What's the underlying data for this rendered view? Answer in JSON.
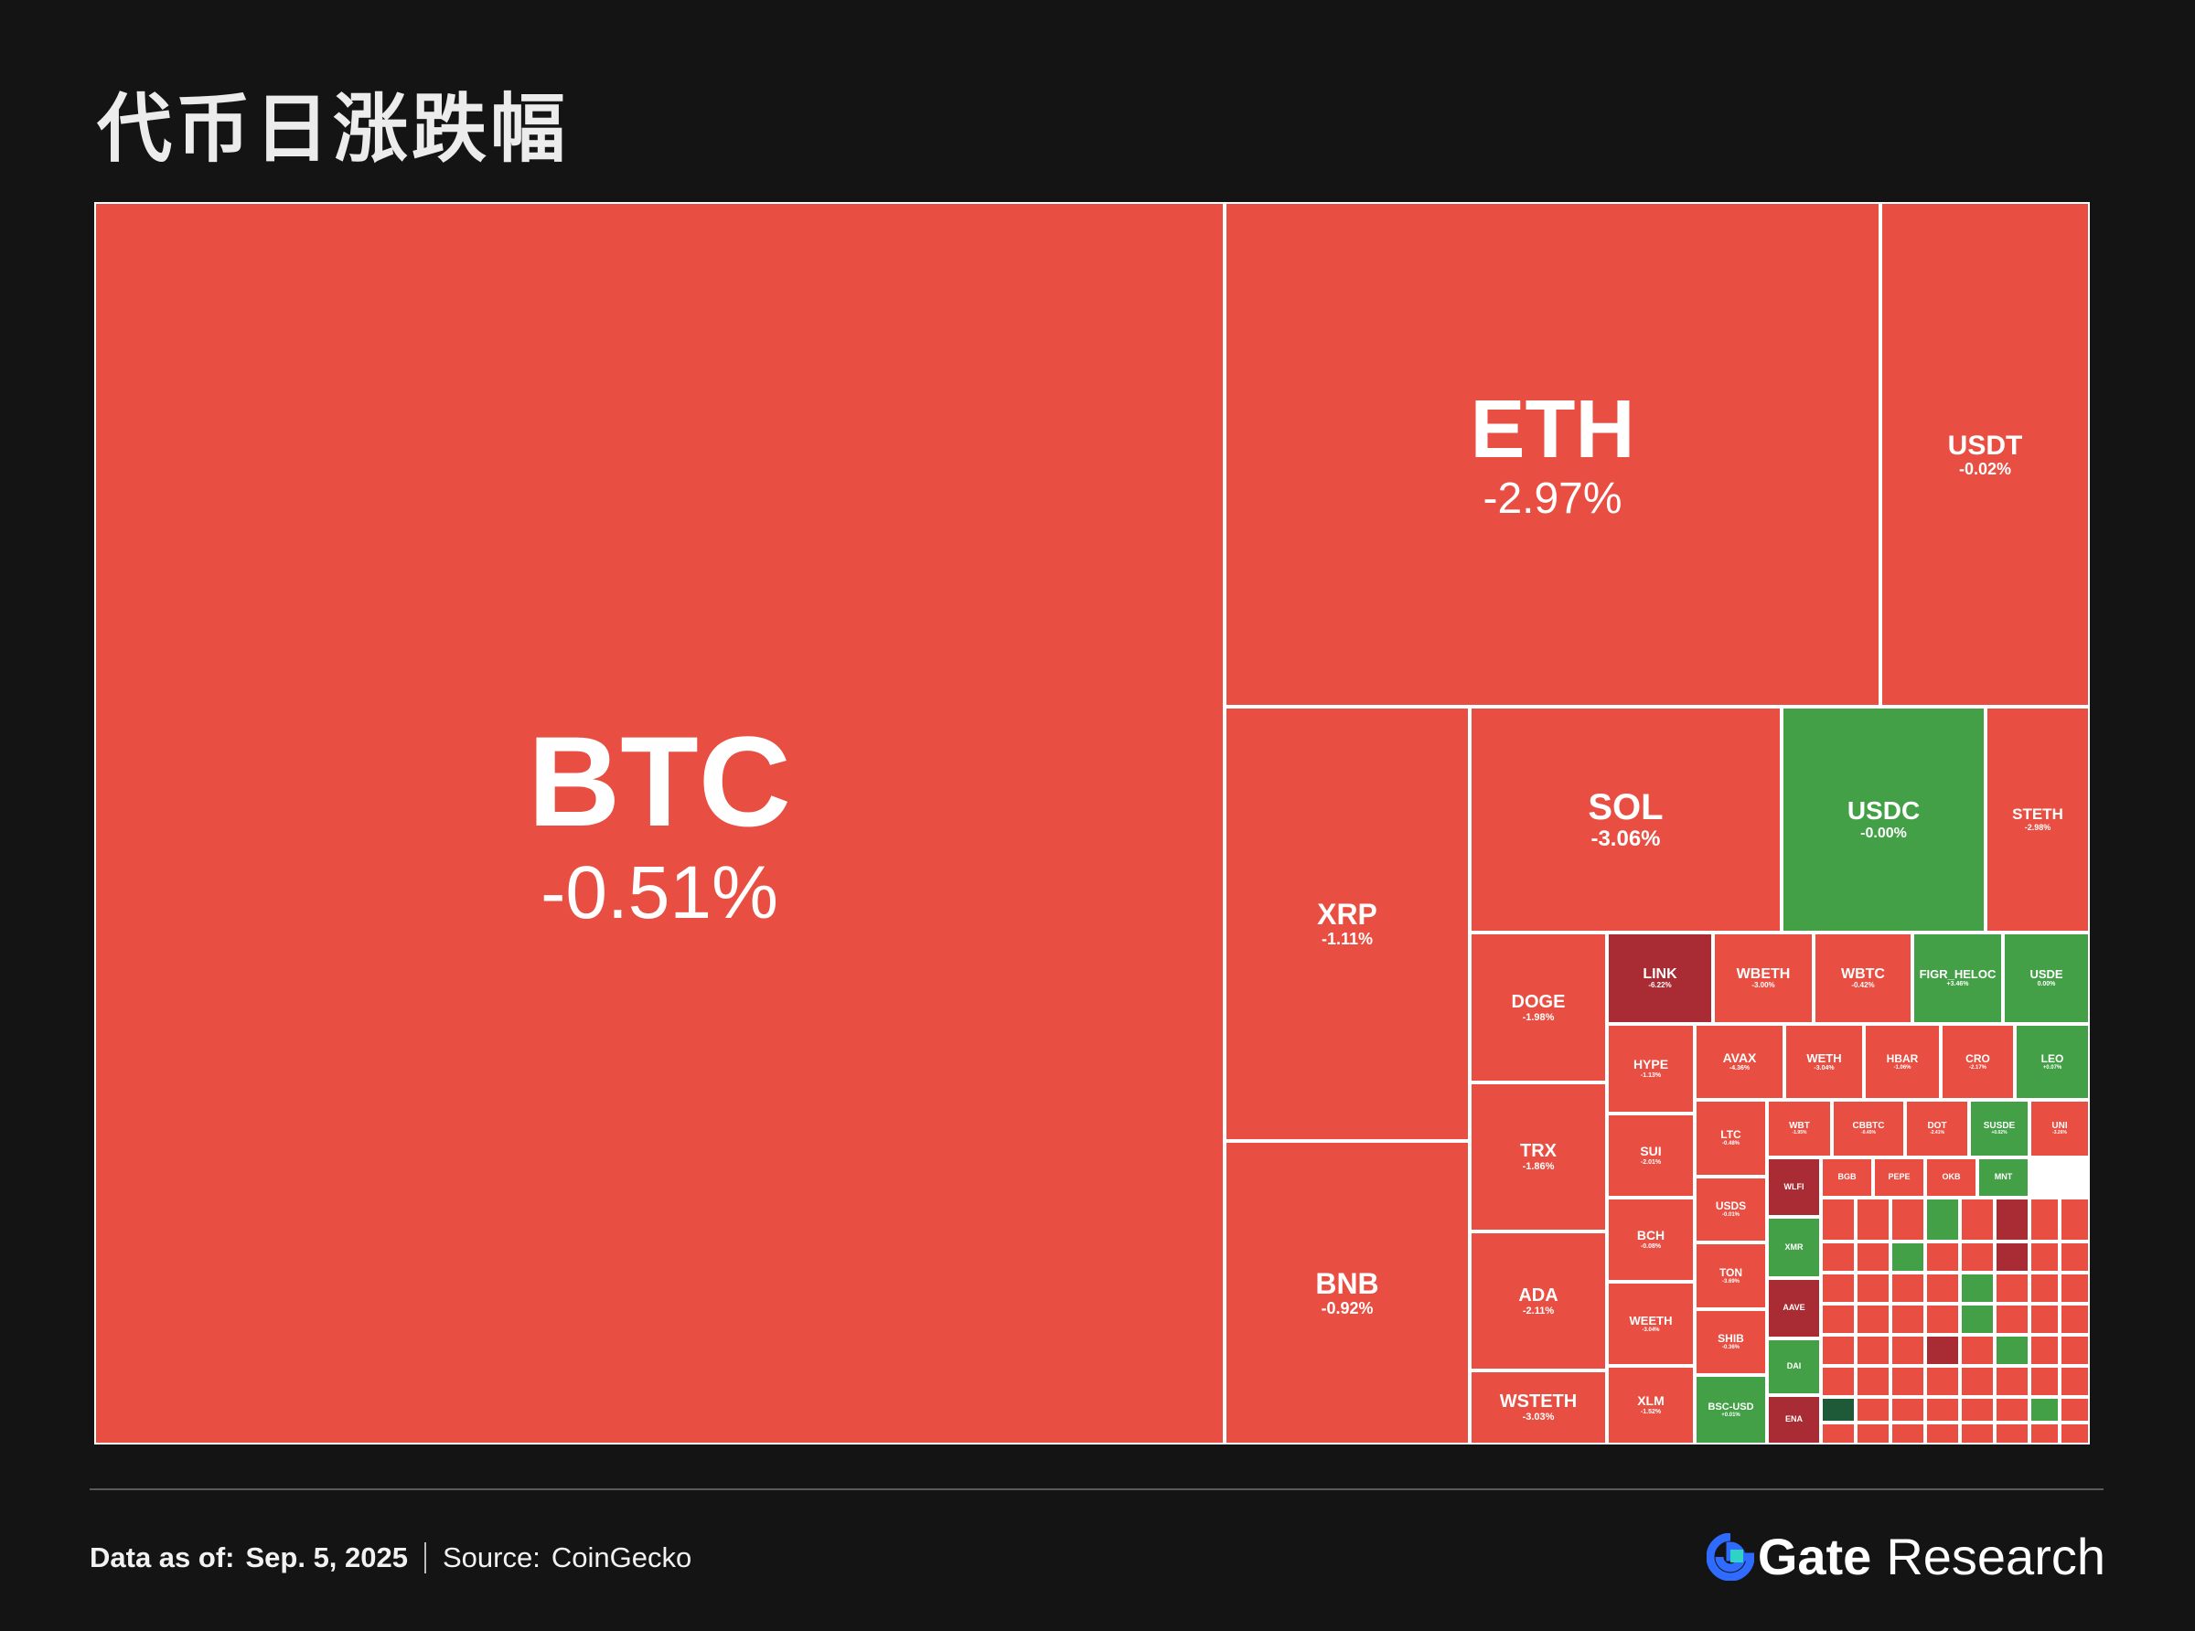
{
  "title": "代币日涨跌幅",
  "colors": {
    "negative": "#e84e41",
    "strong_negative": "#a92b33",
    "positive": "#43a047",
    "strong_positive": "#1e5a38",
    "neutral": "#e4513f"
  },
  "chart_data": {
    "type": "treemap",
    "metric": "daily price change (%)",
    "cells": [
      {
        "symbol": "BTC",
        "change": "-0.51%",
        "value": -0.51
      },
      {
        "symbol": "ETH",
        "change": "-2.97%",
        "value": -2.97
      },
      {
        "symbol": "USDT",
        "change": "-0.02%",
        "value": -0.02
      },
      {
        "symbol": "XRP",
        "change": "-1.11%",
        "value": -1.11
      },
      {
        "symbol": "BNB",
        "change": "-0.92%",
        "value": -0.92
      },
      {
        "symbol": "SOL",
        "change": "-3.06%",
        "value": -3.06
      },
      {
        "symbol": "USDC",
        "change": "-0.00%",
        "value": 0.0
      },
      {
        "symbol": "STETH",
        "change": "-2.98%",
        "value": -2.98
      },
      {
        "symbol": "DOGE",
        "change": "-1.98%",
        "value": -1.98
      },
      {
        "symbol": "TRX",
        "change": "-1.86%",
        "value": -1.86
      },
      {
        "symbol": "ADA",
        "change": "-2.11%",
        "value": -2.11
      },
      {
        "symbol": "WSTETH",
        "change": "-3.03%",
        "value": -3.03
      },
      {
        "symbol": "LINK",
        "change": "-6.22%",
        "value": -6.22
      },
      {
        "symbol": "WBETH",
        "change": "-3.00%",
        "value": -3.0
      },
      {
        "symbol": "WBTC",
        "change": "-0.42%",
        "value": -0.42
      },
      {
        "symbol": "FIGR_HELOC",
        "change": "+3.46%",
        "value": 3.46
      },
      {
        "symbol": "USDE",
        "change": "0.00%",
        "value": 0.0
      },
      {
        "symbol": "HYPE",
        "change": "-1.13%",
        "value": -1.13
      },
      {
        "symbol": "AVAX",
        "change": "-4.36%",
        "value": -4.36
      },
      {
        "symbol": "WETH",
        "change": "-3.04%",
        "value": -3.04
      },
      {
        "symbol": "HBAR",
        "change": "-1.06%",
        "value": -1.06
      },
      {
        "symbol": "CRO",
        "change": "-2.17%",
        "value": -2.17
      },
      {
        "symbol": "LEO",
        "change": "+0.07%",
        "value": 0.07
      },
      {
        "symbol": "SUI",
        "change": "-2.01%",
        "value": -2.01
      },
      {
        "symbol": "BCH",
        "change": "-0.08%",
        "value": -0.08
      },
      {
        "symbol": "WEETH",
        "change": "-3.04%",
        "value": -3.04
      },
      {
        "symbol": "XLM",
        "change": "-1.52%",
        "value": -1.52
      },
      {
        "symbol": "LTC",
        "change": "-0.48%",
        "value": -0.48
      },
      {
        "symbol": "USDS",
        "change": "-0.01%",
        "value": -0.01
      },
      {
        "symbol": "TON",
        "change": "-3.69%",
        "value": -3.69
      },
      {
        "symbol": "SHIB",
        "change": "-0.36%",
        "value": -0.36
      },
      {
        "symbol": "BSC-USD",
        "change": "+0.01%",
        "value": 0.01
      },
      {
        "symbol": "WBT",
        "change": "-1.95%",
        "value": -1.95
      },
      {
        "symbol": "CBBTC",
        "change": "-0.45%",
        "value": -0.45
      },
      {
        "symbol": "DOT",
        "change": "-2.41%",
        "value": -2.41
      },
      {
        "symbol": "SUSDE",
        "change": "+0.02%",
        "value": 0.02
      },
      {
        "symbol": "UNI",
        "change": "-3.26%",
        "value": -3.26
      },
      {
        "symbol": "WLFI",
        "change": "",
        "value": -7.5
      },
      {
        "symbol": "BGB",
        "change": "",
        "value": -1.5
      },
      {
        "symbol": "PEPE",
        "change": "",
        "value": -3.5
      },
      {
        "symbol": "OKB",
        "change": "",
        "value": -2.5
      },
      {
        "symbol": "MNT",
        "change": "",
        "value": 2.5
      },
      {
        "symbol": "XMR",
        "change": "",
        "value": 2.0
      },
      {
        "symbol": "AAVE",
        "change": "",
        "value": -6.0
      },
      {
        "symbol": "DAI",
        "change": "",
        "value": 0.0
      },
      {
        "symbol": "ENA",
        "change": "",
        "value": -7.0
      }
    ]
  },
  "footer": {
    "data_as_of_label": "Data as of:",
    "data_as_of_value": "Sep. 5, 2025",
    "source_label": "Source:",
    "source_value": "CoinGecko"
  },
  "logo": {
    "gate": "Gate",
    "research": "Research"
  }
}
